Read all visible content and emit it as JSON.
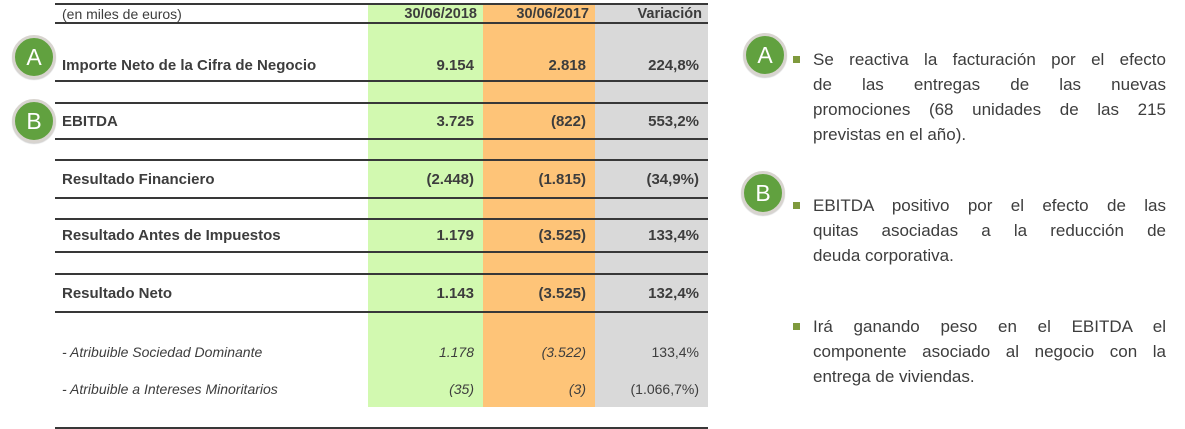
{
  "table": {
    "unit_label": "(en miles de euros)",
    "columns": [
      "30/06/2018",
      "30/06/2017",
      "Variación"
    ],
    "rows": [
      {
        "badge": "A",
        "label": "Importe Neto de la Cifra de Negocio",
        "y2018": "9.154",
        "y2017": "2.818",
        "variacion": "224,8%"
      },
      {
        "badge": "B",
        "label": "EBITDA",
        "y2018": "3.725",
        "y2017": "(822)",
        "variacion": "553,2%"
      },
      {
        "label": "Resultado Financiero",
        "y2018": "(2.448)",
        "y2017": "(1.815)",
        "variacion": "(34,9%)"
      },
      {
        "label": "Resultado Antes de Impuestos",
        "y2018": "1.179",
        "y2017": "(3.525)",
        "variacion": "133,4%"
      },
      {
        "label": "Resultado Neto",
        "y2018": "1.143",
        "y2017": "(3.525)",
        "variacion": "132,4%"
      },
      {
        "label": "- Atribuible Sociedad Dominante",
        "y2018": "1.178",
        "y2017": "(3.522)",
        "variacion": "133,4%"
      },
      {
        "label": "- Atribuible a Intereses Minoritarios",
        "y2018": "(35)",
        "y2017": "(3)",
        "variacion": "(1.066,7%)"
      }
    ]
  },
  "notes": [
    {
      "badge": "A",
      "lines": [
        "Se reactiva la facturación por el efecto",
        "de las entregas de las nuevas",
        "promociones (68 unidades de las 215",
        "previstas en el año)."
      ]
    },
    {
      "badge": "B",
      "lines": [
        "EBITDA positivo por el efecto de las",
        "quitas asociadas a la reducción de",
        "deuda corporativa."
      ]
    },
    {
      "lines": [
        "Irá ganando peso en el EBITDA el",
        "componente asociado al negocio con la",
        "entrega de viviendas."
      ]
    }
  ],
  "colors": {
    "col_2018_bg": "#d2f9b0",
    "col_2017_bg": "#fec478",
    "col_variacion_bg": "#d9d9d9",
    "badge_fill": "#61a13f",
    "badge_ring": "#d8d4cf",
    "bullet": "#7f9a3d",
    "rule": "#383838",
    "text": "#3d3d3d"
  }
}
